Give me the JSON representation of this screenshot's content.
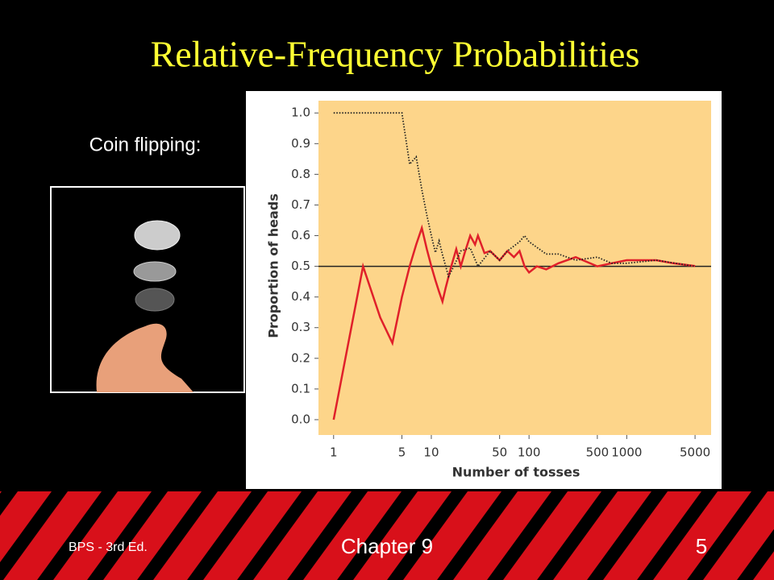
{
  "slide": {
    "title": "Relative-Frequency Probabilities",
    "caption": "Coin flipping:",
    "footer_left": "BPS - 3rd Ed.",
    "footer_center": "Chapter 9",
    "page_number": "5"
  },
  "chart_data": {
    "type": "line",
    "x_label": "Number of tosses",
    "y_label": "Proportion of heads",
    "x_scale": "log",
    "xlim": [
      0.7,
      7300
    ],
    "xticks": [
      1,
      5,
      10,
      50,
      100,
      500,
      1000,
      5000
    ],
    "ylim": [
      -0.05,
      1.04
    ],
    "yticks": [
      {
        "value": 0,
        "label": "0.0"
      },
      {
        "value": 0.1,
        "label": "0.1"
      },
      {
        "value": 0.2,
        "label": "0.2"
      },
      {
        "value": 0.3,
        "label": "0.3"
      },
      {
        "value": 0.4,
        "label": "0.4"
      },
      {
        "value": 0.5,
        "label": "0.5"
      },
      {
        "value": 0.6,
        "label": "0.6"
      },
      {
        "value": 0.7,
        "label": "0.7"
      },
      {
        "value": 0.8,
        "label": "0.8"
      },
      {
        "value": 0.9,
        "label": "0.9"
      },
      {
        "value": 1,
        "label": "1.0"
      }
    ],
    "reference_line": 0.5,
    "series": [
      {
        "color": "#e0202a",
        "style": "solid",
        "x": [
          1,
          2,
          3,
          4,
          5,
          6,
          7,
          8,
          9,
          10,
          11,
          12,
          13,
          14,
          16,
          18,
          20,
          22,
          25,
          28,
          30,
          35,
          40,
          50,
          60,
          70,
          80,
          90,
          100,
          120,
          150,
          200,
          300,
          500,
          700,
          1000,
          2000,
          3000,
          5000
        ],
        "values": [
          0,
          0.5,
          0.333,
          0.25,
          0.4,
          0.5,
          0.571,
          0.625,
          0.556,
          0.5,
          0.455,
          0.417,
          0.385,
          0.429,
          0.5,
          0.556,
          0.5,
          0.545,
          0.6,
          0.571,
          0.6,
          0.543,
          0.55,
          0.52,
          0.55,
          0.53,
          0.55,
          0.5,
          0.48,
          0.5,
          0.49,
          0.51,
          0.53,
          0.5,
          0.51,
          0.52,
          0.52,
          0.51,
          0.501
        ]
      },
      {
        "color": "#222222",
        "style": "dotted",
        "x": [
          1,
          2,
          3,
          4,
          5,
          6,
          7,
          8,
          9,
          10,
          11,
          12,
          13,
          15,
          17,
          20,
          25,
          30,
          40,
          50,
          60,
          80,
          90,
          100,
          150,
          200,
          300,
          500,
          700,
          1000,
          2000,
          5000
        ],
        "values": [
          1,
          1,
          1,
          1,
          1,
          0.833,
          0.857,
          0.75,
          0.667,
          0.6,
          0.545,
          0.583,
          0.538,
          0.467,
          0.5,
          0.55,
          0.56,
          0.5,
          0.55,
          0.52,
          0.55,
          0.58,
          0.6,
          0.58,
          0.54,
          0.54,
          0.52,
          0.53,
          0.51,
          0.51,
          0.52,
          0.5
        ]
      }
    ]
  }
}
